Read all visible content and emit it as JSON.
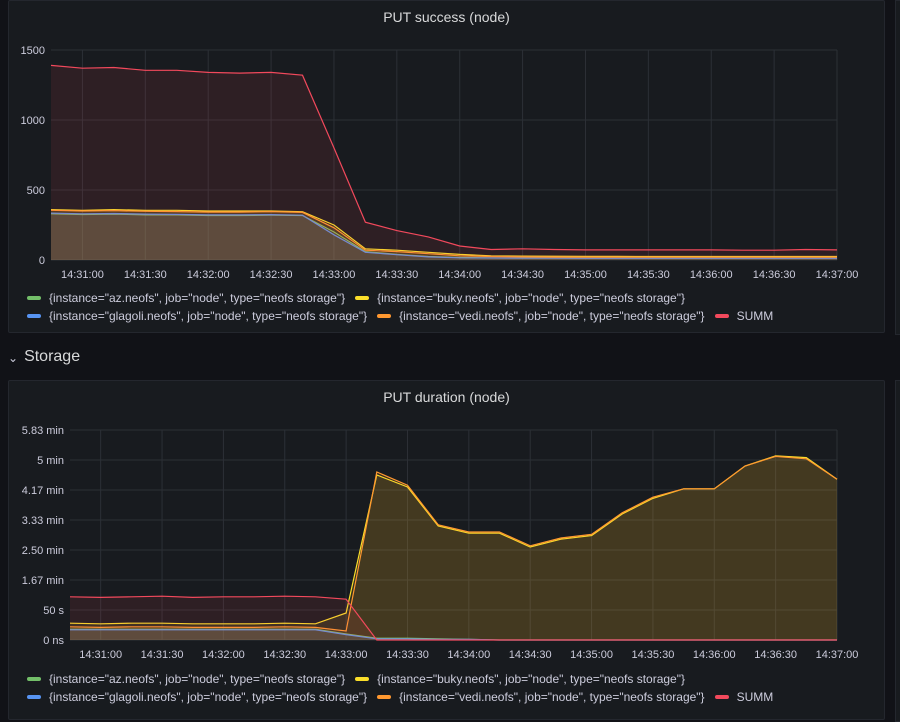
{
  "row": {
    "title": "Storage",
    "chevron": "chevron-down-icon"
  },
  "legend": [
    {
      "label": "{instance=\"az.neofs\", job=\"node\", type=\"neofs storage\"}",
      "color": "#73bf69"
    },
    {
      "label": "{instance=\"buky.neofs\", job=\"node\", type=\"neofs storage\"}",
      "color": "#fade2a"
    },
    {
      "label": "{instance=\"glagoli.neofs\", job=\"node\", type=\"neofs storage\"}",
      "color": "#5794f2"
    },
    {
      "label": "{instance=\"vedi.neofs\", job=\"node\", type=\"neofs storage\"}",
      "color": "#ff9830"
    },
    {
      "label": "SUMM",
      "color": "#f2495c"
    }
  ],
  "panels": [
    {
      "title": "PUT success (node)",
      "chart_data": {
        "type": "area",
        "x": [
          "14:30:45",
          "14:31:00",
          "14:31:15",
          "14:31:30",
          "14:31:45",
          "14:32:00",
          "14:32:15",
          "14:32:30",
          "14:32:45",
          "14:33:00",
          "14:33:15",
          "14:33:30",
          "14:33:45",
          "14:34:00",
          "14:34:15",
          "14:34:30",
          "14:34:45",
          "14:35:00",
          "14:35:15",
          "14:35:30",
          "14:35:45",
          "14:36:00",
          "14:36:15",
          "14:36:30",
          "14:36:45",
          "14:37:00"
        ],
        "x_ticks": [
          "14:31:00",
          "14:31:30",
          "14:32:00",
          "14:32:30",
          "14:33:00",
          "14:33:30",
          "14:34:00",
          "14:34:30",
          "14:35:00",
          "14:35:30",
          "14:36:00",
          "14:36:30",
          "14:37:00"
        ],
        "y_ticks": [
          "0",
          "500",
          "1000",
          "1500"
        ],
        "ylim": [
          0,
          1500
        ],
        "grid": true,
        "legend_placement": "bottom",
        "series": [
          {
            "name": "{instance=\"az.neofs\", job=\"node\", type=\"neofs storage\"}",
            "color": "#73bf69",
            "values": [
              330,
              325,
              328,
              322,
              322,
              318,
              318,
              320,
              318,
              200,
              60,
              40,
              25,
              18,
              15,
              14,
              14,
              13,
              13,
              13,
              13,
              13,
              13,
              13,
              13,
              13
            ]
          },
          {
            "name": "{instance=\"buky.neofs\", job=\"node\", type=\"neofs storage\"}",
            "color": "#fade2a",
            "values": [
              360,
              355,
              360,
              355,
              355,
              350,
              350,
              350,
              345,
              250,
              80,
              70,
              55,
              40,
              30,
              28,
              27,
              26,
              26,
              25,
              25,
              25,
              25,
              25,
              25,
              25
            ]
          },
          {
            "name": "{instance=\"glagoli.neofs\", job=\"node\", type=\"neofs storage\"}",
            "color": "#5794f2",
            "values": [
              335,
              330,
              332,
              328,
              326,
              322,
              322,
              324,
              320,
              180,
              55,
              38,
              22,
              16,
              14,
              13,
              13,
              12,
              12,
              12,
              12,
              12,
              12,
              12,
              12,
              12
            ]
          },
          {
            "name": "{instance=\"vedi.neofs\", job=\"node\", type=\"neofs storage\"}",
            "color": "#ff9830",
            "values": [
              355,
              350,
              352,
              348,
              346,
              342,
              342,
              345,
              340,
              230,
              70,
              60,
              45,
              30,
              25,
              22,
              21,
              20,
              20,
              20,
              20,
              20,
              20,
              20,
              20,
              20
            ]
          },
          {
            "name": "SUMM",
            "color": "#f2495c",
            "values": [
              1390,
              1370,
              1375,
              1355,
              1355,
              1340,
              1335,
              1340,
              1320,
              800,
              270,
              210,
              165,
              100,
              75,
              80,
              75,
              72,
              72,
              72,
              72,
              72,
              70,
              70,
              75,
              72
            ]
          }
        ]
      }
    },
    {
      "title": "PUT duration (node)",
      "chart_data": {
        "type": "area",
        "x": [
          "14:30:45",
          "14:31:00",
          "14:31:15",
          "14:31:30",
          "14:31:45",
          "14:32:00",
          "14:32:15",
          "14:32:30",
          "14:32:45",
          "14:33:00",
          "14:33:15",
          "14:33:30",
          "14:33:45",
          "14:34:00",
          "14:34:15",
          "14:34:30",
          "14:34:45",
          "14:35:00",
          "14:35:15",
          "14:35:30",
          "14:35:45",
          "14:36:00",
          "14:36:15",
          "14:36:30",
          "14:36:45",
          "14:37:00"
        ],
        "x_ticks": [
          "14:31:00",
          "14:31:30",
          "14:32:00",
          "14:32:30",
          "14:33:00",
          "14:33:30",
          "14:34:00",
          "14:34:30",
          "14:35:00",
          "14:35:30",
          "14:36:00",
          "14:36:30",
          "14:37:00"
        ],
        "y_ticks": [
          "0 ns",
          "50 s",
          "1.67 min",
          "2.50 min",
          "3.33 min",
          "4.17 min",
          "5 min",
          "5.83 min"
        ],
        "ylim": [
          0,
          350
        ],
        "y_unit": "seconds",
        "grid": true,
        "legend_placement": "bottom",
        "series": [
          {
            "name": "{instance=\"az.neofs\", job=\"node\", type=\"neofs storage\"}",
            "color": "#73bf69",
            "values": [
              18,
              18,
              18,
              18,
              18,
              18,
              18,
              18,
              18,
              10,
              3,
              3,
              2,
              1,
              0,
              0,
              0,
              0,
              0,
              0,
              0,
              0,
              0,
              0,
              0,
              0
            ]
          },
          {
            "name": "{instance=\"buky.neofs\", job=\"node\", type=\"neofs storage\"}",
            "color": "#fade2a",
            "values": [
              28,
              27,
              28,
              28,
              27,
              27,
              27,
              28,
              27,
              45,
              275,
              255,
              190,
              178,
              178,
              155,
              168,
              174,
              210,
              236,
              252,
              252,
              290,
              307,
              304,
              268
            ]
          },
          {
            "name": "{instance=\"glagoli.neofs\", job=\"node\", type=\"neofs storage\"}",
            "color": "#5794f2",
            "values": [
              17,
              17,
              17,
              17,
              17,
              17,
              17,
              17,
              17,
              9,
              2,
              2,
              1,
              1,
              0,
              0,
              0,
              0,
              0,
              0,
              0,
              0,
              0,
              0,
              0,
              0
            ]
          },
          {
            "name": "{instance=\"vedi.neofs\", job=\"node\", type=\"neofs storage\"}",
            "color": "#ff9830",
            "values": [
              22,
              21,
              22,
              22,
              21,
              21,
              21,
              22,
              21,
              15,
              280,
              258,
              192,
              180,
              180,
              157,
              170,
              176,
              212,
              238,
              252,
              252,
              290,
              306,
              302,
              268
            ]
          },
          {
            "name": "SUMM",
            "color": "#f2495c",
            "values": [
              72,
              71,
              72,
              73,
              71,
              72,
              72,
              73,
              72,
              68,
              0,
              0,
              0,
              0,
              0,
              0,
              0,
              0,
              0,
              0,
              0,
              0,
              0,
              0,
              0,
              0
            ]
          }
        ]
      }
    }
  ]
}
